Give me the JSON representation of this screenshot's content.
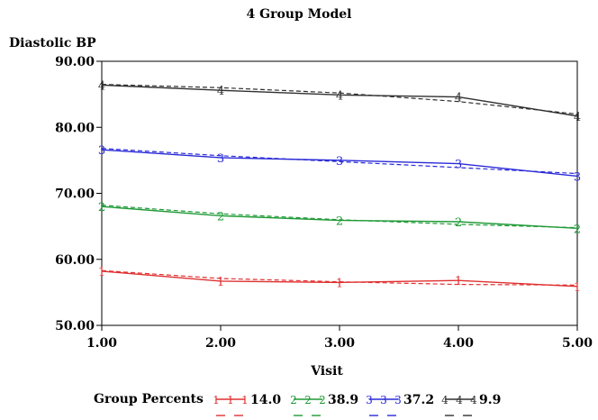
{
  "chart_data": {
    "type": "line",
    "title": "4 Group Model",
    "ylabel": "Diastolic BP",
    "xlabel": "Visit",
    "x": [
      1,
      2,
      3,
      4,
      5
    ],
    "x_ticks": [
      "1.00",
      "2.00",
      "3.00",
      "4.00",
      "5.00"
    ],
    "y_ticks": [
      "50.00",
      "60.00",
      "70.00",
      "80.00",
      "90.00"
    ],
    "xlim": [
      1,
      5
    ],
    "ylim": [
      50,
      90
    ],
    "grid": false,
    "legend": {
      "title": "Group Percents",
      "placement": "bottom"
    },
    "series": [
      {
        "name": "14.0",
        "marker": "1",
        "color": "#e03030",
        "values": [
          58.2,
          56.7,
          56.5,
          56.8,
          55.9
        ],
        "fitted": [
          58.3,
          57.1,
          56.6,
          56.2,
          56.1
        ]
      },
      {
        "name": "38.9",
        "marker": "2",
        "color": "#1f9a36",
        "values": [
          68.0,
          66.6,
          65.9,
          65.7,
          64.7
        ],
        "fitted": [
          68.2,
          66.9,
          66.0,
          65.3,
          64.8
        ]
      },
      {
        "name": "37.2",
        "marker": "3",
        "color": "#2a2ad8",
        "values": [
          76.6,
          75.4,
          75.0,
          74.5,
          72.6
        ],
        "fitted": [
          76.8,
          75.7,
          74.8,
          73.9,
          73.0
        ]
      },
      {
        "name": "9.9",
        "marker": "4",
        "color": "#303030",
        "values": [
          86.4,
          85.6,
          84.9,
          84.6,
          81.7
        ],
        "fitted": [
          86.5,
          86.0,
          85.2,
          83.9,
          82.0
        ]
      }
    ]
  }
}
